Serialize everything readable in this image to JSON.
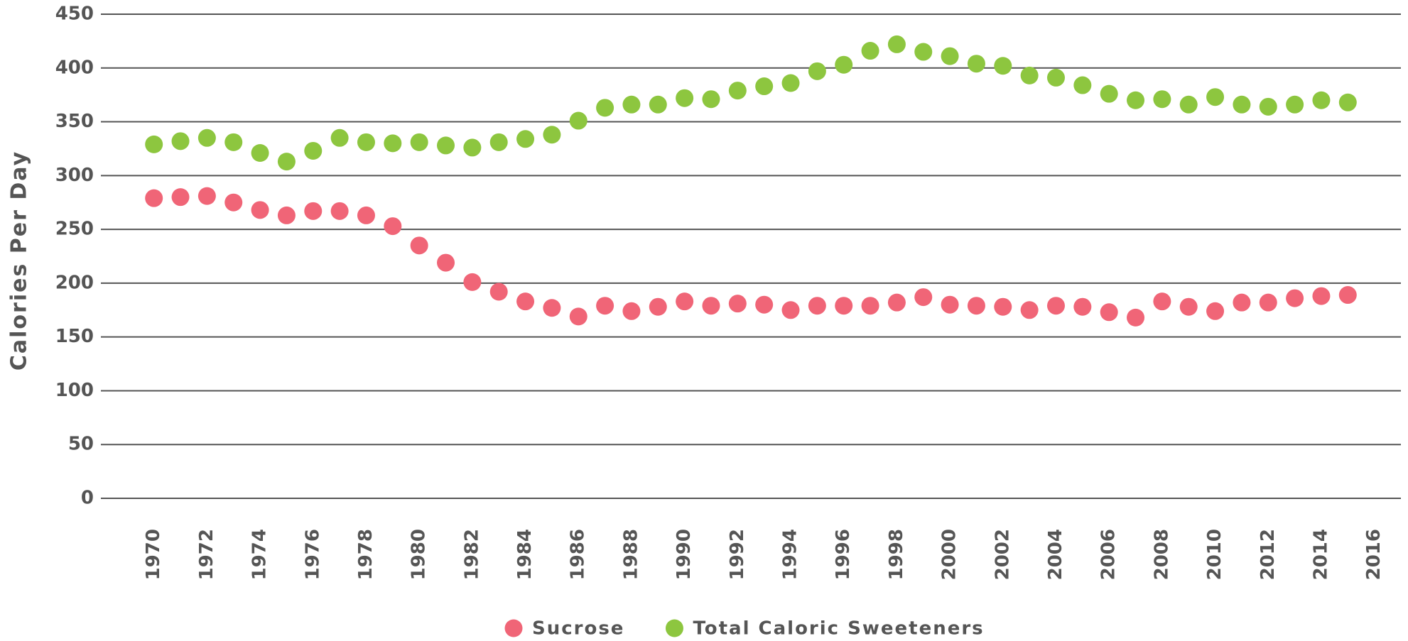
{
  "chart_data": {
    "type": "scatter",
    "y_label": "Calories Per Day",
    "x": [
      1970,
      1971,
      1972,
      1973,
      1974,
      1975,
      1976,
      1977,
      1978,
      1979,
      1980,
      1981,
      1982,
      1983,
      1984,
      1985,
      1986,
      1987,
      1988,
      1989,
      1990,
      1991,
      1992,
      1993,
      1994,
      1995,
      1996,
      1997,
      1998,
      1999,
      2000,
      2001,
      2002,
      2003,
      2004,
      2005,
      2006,
      2007,
      2008,
      2009,
      2010,
      2011,
      2012,
      2013,
      2014,
      2015
    ],
    "series": [
      {
        "name": "Sucrose",
        "color": "#f06577",
        "values": [
          279,
          280,
          281,
          275,
          268,
          263,
          267,
          267,
          263,
          253,
          235,
          219,
          201,
          192,
          183,
          177,
          169,
          179,
          174,
          178,
          183,
          179,
          181,
          180,
          175,
          179,
          179,
          179,
          182,
          187,
          180,
          179,
          178,
          175,
          179,
          178,
          173,
          168,
          183,
          178,
          174,
          182,
          182,
          186,
          188,
          189
        ]
      },
      {
        "name": "Total Caloric Sweeteners",
        "color": "#8dc63f",
        "values": [
          329,
          332,
          335,
          331,
          321,
          313,
          323,
          335,
          331,
          330,
          331,
          328,
          326,
          331,
          334,
          338,
          351,
          363,
          366,
          366,
          372,
          371,
          379,
          383,
          386,
          397,
          403,
          416,
          422,
          415,
          411,
          404,
          402,
          393,
          391,
          384,
          376,
          370,
          371,
          366,
          373,
          366,
          364,
          366,
          370,
          368
        ]
      }
    ],
    "xlim": [
      1968,
      2017
    ],
    "xticks": [
      1970,
      1972,
      1974,
      1976,
      1978,
      1980,
      1982,
      1984,
      1986,
      1988,
      1990,
      1992,
      1994,
      1996,
      1998,
      2000,
      2002,
      2004,
      2006,
      2008,
      2010,
      2012,
      2014,
      2016
    ],
    "ylim": [
      0,
      450
    ],
    "yticks": [
      0,
      50,
      100,
      150,
      200,
      250,
      300,
      350,
      400,
      450
    ],
    "grid": true,
    "legend": "bottom"
  }
}
